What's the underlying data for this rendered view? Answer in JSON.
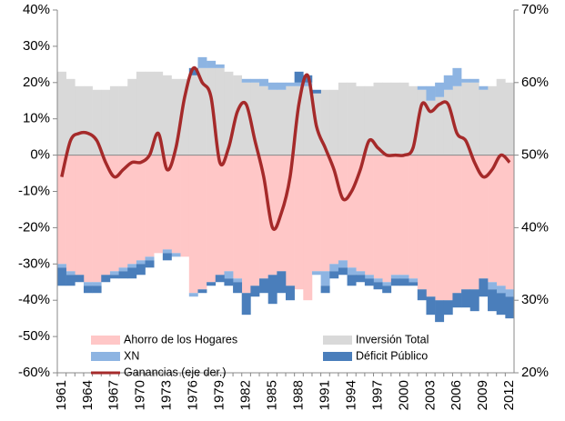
{
  "chart_data": {
    "type": "bar",
    "categories": [
      "1961",
      null,
      null,
      "1964",
      null,
      null,
      "1967",
      null,
      null,
      "1970",
      null,
      null,
      "1973",
      null,
      null,
      "1976",
      null,
      null,
      "1979",
      null,
      null,
      "1982",
      null,
      null,
      "1985",
      null,
      null,
      "1988",
      null,
      null,
      "1991",
      null,
      null,
      "1994",
      null,
      null,
      "1997",
      null,
      null,
      "2000",
      null,
      null,
      "2003",
      null,
      null,
      "2006",
      null,
      null,
      "2009",
      null,
      null,
      "2012"
    ],
    "series": [
      {
        "name": "Inversión Total",
        "color": "#d9d9d9",
        "values": [
          23,
          21,
          19,
          19,
          18,
          18,
          19,
          19,
          21,
          23,
          23,
          23,
          22,
          21,
          21,
          22,
          24,
          24,
          24,
          23,
          22,
          20,
          20,
          19,
          18,
          18,
          19,
          19,
          19,
          17,
          18,
          18,
          20,
          20,
          19,
          19,
          20,
          20,
          20,
          20,
          19,
          18,
          15,
          16,
          18,
          19,
          20,
          20,
          18,
          19,
          21,
          20
        ]
      },
      {
        "name": "Ahorro de los Hogares",
        "color": "#ffc7c7",
        "values": [
          -30,
          -32,
          -33,
          -35,
          -35,
          -33,
          -32,
          -31,
          -30,
          -29,
          -28,
          -27,
          -26,
          -27,
          -28,
          -38,
          -37,
          -35,
          -33,
          -32,
          -34,
          -38,
          -36,
          -34,
          -33,
          -32,
          -36,
          -37,
          -40,
          -32,
          -32,
          -30,
          -29,
          -31,
          -32,
          -33,
          -34,
          -35,
          -33,
          -33,
          -34,
          -37,
          -39,
          -40,
          -40,
          -38,
          -37,
          -37,
          -34,
          -35,
          -36,
          -37
        ]
      },
      {
        "name": "XN",
        "color": "#8db4e2",
        "values": [
          -1,
          -1,
          0,
          -1,
          -1,
          0,
          -1,
          -1,
          -1,
          -1,
          -1,
          0,
          -1,
          -1,
          0,
          -1,
          3,
          2,
          1,
          -2,
          -1,
          1,
          1,
          2,
          2,
          2,
          1,
          1,
          1,
          -1,
          -4,
          -2,
          -2,
          -2,
          -1,
          -1,
          -1,
          -1,
          -1,
          -1,
          -1,
          1,
          4,
          4,
          4,
          5,
          1,
          1,
          1,
          -2,
          -2,
          -2
        ]
      },
      {
        "name": "Déficit Público",
        "color": "#4a7ebb",
        "values": [
          -5,
          -3,
          -2,
          -2,
          -2,
          -2,
          -1,
          -2,
          -3,
          -3,
          -2,
          0,
          -2,
          0,
          0,
          2,
          -1,
          -1,
          -2,
          -2,
          -3,
          -6,
          -3,
          -4,
          -8,
          -6,
          -4,
          3,
          2,
          1,
          -2,
          -2,
          -2,
          -3,
          -2,
          -2,
          -2,
          -2,
          -2,
          -2,
          -1,
          -3,
          -5,
          -6,
          -4,
          -4,
          -5,
          -6,
          -5,
          -6,
          -6,
          -6
        ]
      },
      {
        "name": "Ganancias (eje der.)",
        "color": "#a52a2a",
        "type": "line",
        "axis": "y2",
        "values": [
          47,
          52,
          53,
          53,
          52,
          49,
          47,
          48,
          49,
          49,
          50,
          53,
          48,
          51,
          58,
          62,
          60,
          58,
          49,
          51,
          56,
          57,
          52,
          47,
          40,
          42,
          47,
          57,
          61,
          54,
          51,
          48,
          44,
          45,
          48,
          52,
          51,
          50,
          50,
          50,
          51,
          57,
          56,
          57,
          57,
          53,
          52,
          49,
          47,
          48,
          50,
          49
        ]
      }
    ],
    "ylim": [
      -60,
      40
    ],
    "yticks": [
      {
        "value": -60,
        "label": "-60%"
      },
      {
        "value": -50,
        "label": "-50%"
      },
      {
        "value": -40,
        "label": "-40%"
      },
      {
        "value": -30,
        "label": "-30%"
      },
      {
        "value": -20,
        "label": "-20%"
      },
      {
        "value": -10,
        "label": "-10%"
      },
      {
        "value": 0,
        "label": "0%"
      },
      {
        "value": 10,
        "label": "10%"
      },
      {
        "value": 20,
        "label": "20%"
      },
      {
        "value": 30,
        "label": "30%"
      },
      {
        "value": 40,
        "label": "40%"
      }
    ],
    "y2lim": [
      20,
      70
    ],
    "y2ticks": [
      {
        "value": 20,
        "label": "20%"
      },
      {
        "value": 30,
        "label": "30%"
      },
      {
        "value": 40,
        "label": "40%"
      },
      {
        "value": 50,
        "label": "50%"
      },
      {
        "value": 60,
        "label": "60%"
      },
      {
        "value": 70,
        "label": "70%"
      }
    ]
  }
}
